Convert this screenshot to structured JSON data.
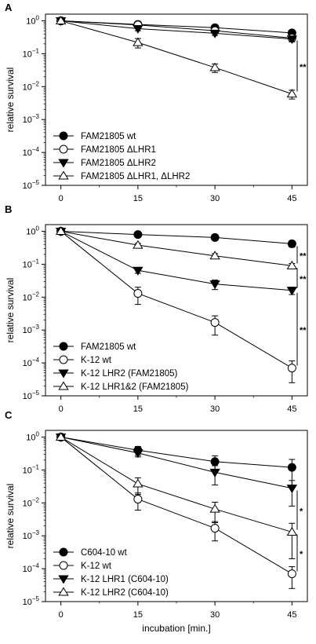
{
  "x_label": "incubation [min.]",
  "y_label": "relative survival",
  "x_ticks": [
    0,
    15,
    30,
    45
  ],
  "y_ticks": [
    "10^0",
    "10^-1",
    "10^-2",
    "10^-3",
    "10^-4",
    "10^-5"
  ],
  "chart_data": [
    {
      "panel": "A",
      "type": "line",
      "y_scale": "log",
      "xlim": [
        -3,
        48
      ],
      "ylim": [
        1e-05,
        1.6
      ],
      "xlabel": "",
      "ylabel": "relative survival",
      "x": [
        0,
        15,
        30,
        45
      ],
      "series": [
        {
          "name": "FAM21805 wt",
          "marker": "filled-circle",
          "values": [
            1,
            0.78,
            0.62,
            0.43
          ],
          "errors": [
            0.05,
            0.09,
            0.08,
            0.06
          ]
        },
        {
          "name": "FAM21805 ΔLHR1",
          "marker": "open-circle",
          "values": [
            1,
            0.75,
            0.5,
            0.3
          ],
          "errors": [
            0.05,
            0.1,
            0.07,
            0.05
          ]
        },
        {
          "name": "FAM21805 ΔLHR2",
          "marker": "filled-triangle-down",
          "values": [
            1,
            0.58,
            0.42,
            0.28
          ],
          "errors": [
            0.05,
            0.08,
            0.06,
            0.05
          ]
        },
        {
          "name": "FAM21805 ΔLHR1, ΔLHR2",
          "marker": "open-triangle-up",
          "values": [
            1,
            0.22,
            0.038,
            0.006
          ],
          "errors": [
            0.05,
            0.07,
            0.011,
            0.0018
          ]
        }
      ],
      "significance": [
        {
          "label": "**",
          "between": [
            0.3,
            0.006
          ]
        }
      ]
    },
    {
      "panel": "B",
      "type": "line",
      "y_scale": "log",
      "xlim": [
        -3,
        48
      ],
      "ylim": [
        1e-05,
        1.6
      ],
      "xlabel": "",
      "ylabel": "relative survival",
      "x": [
        0,
        15,
        30,
        45
      ],
      "series": [
        {
          "name": "FAM21805 wt",
          "marker": "filled-circle",
          "values": [
            1,
            0.8,
            0.65,
            0.42
          ],
          "errors": [
            0.05,
            0.08,
            0.08,
            0.09
          ]
        },
        {
          "name": "K-12 wt",
          "marker": "open-circle",
          "values": [
            1,
            0.013,
            0.0017,
            7e-05
          ],
          "errors": [
            0.05,
            0.007,
            0.001,
            4.5e-05
          ]
        },
        {
          "name": "K-12 LHR2 (FAM21805)",
          "marker": "filled-triangle-down",
          "values": [
            1,
            0.065,
            0.025,
            0.016
          ],
          "errors": [
            0.05,
            0.012,
            0.008,
            0.004
          ]
        },
        {
          "name": "K-12 LHR1&2 (FAM21805)",
          "marker": "open-triangle-up",
          "values": [
            1,
            0.38,
            0.18,
            0.09
          ],
          "errors": [
            0.05,
            0.05,
            0.03,
            0.015
          ]
        }
      ],
      "significance": [
        {
          "label": "**",
          "between": [
            0.42,
            0.09
          ]
        },
        {
          "label": "**",
          "between": [
            0.09,
            0.016
          ]
        },
        {
          "label": "**",
          "between": [
            0.016,
            7e-05
          ]
        }
      ]
    },
    {
      "panel": "C",
      "type": "line",
      "y_scale": "log",
      "xlim": [
        -3,
        48
      ],
      "ylim": [
        1e-05,
        1.6
      ],
      "xlabel": "incubation [min.]",
      "ylabel": "relative survival",
      "x": [
        0,
        15,
        30,
        45
      ],
      "series": [
        {
          "name": "C604-10 wt",
          "marker": "filled-circle",
          "values": [
            1,
            0.4,
            0.18,
            0.12
          ],
          "errors": [
            0.05,
            0.12,
            0.09,
            0.09
          ]
        },
        {
          "name": "K-12 wt",
          "marker": "open-circle",
          "values": [
            1,
            0.013,
            0.0017,
            7e-05
          ],
          "errors": [
            0.05,
            0.007,
            0.001,
            4.5e-05
          ]
        },
        {
          "name": "K-12 LHR1 (C604-10)",
          "marker": "filled-triangle-down",
          "values": [
            1,
            0.33,
            0.085,
            0.028
          ],
          "errors": [
            0.05,
            0.08,
            0.05,
            0.02
          ]
        },
        {
          "name": "K-12 LHR2 (C604-10)",
          "marker": "open-triangle-up",
          "values": [
            1,
            0.038,
            0.0065,
            0.0013
          ],
          "errors": [
            0.05,
            0.02,
            0.004,
            0.0011
          ]
        }
      ],
      "significance": [
        {
          "label": "*",
          "between": [
            0.028,
            0.0013
          ]
        },
        {
          "label": "*",
          "between": [
            0.0013,
            7e-05
          ]
        }
      ]
    }
  ]
}
